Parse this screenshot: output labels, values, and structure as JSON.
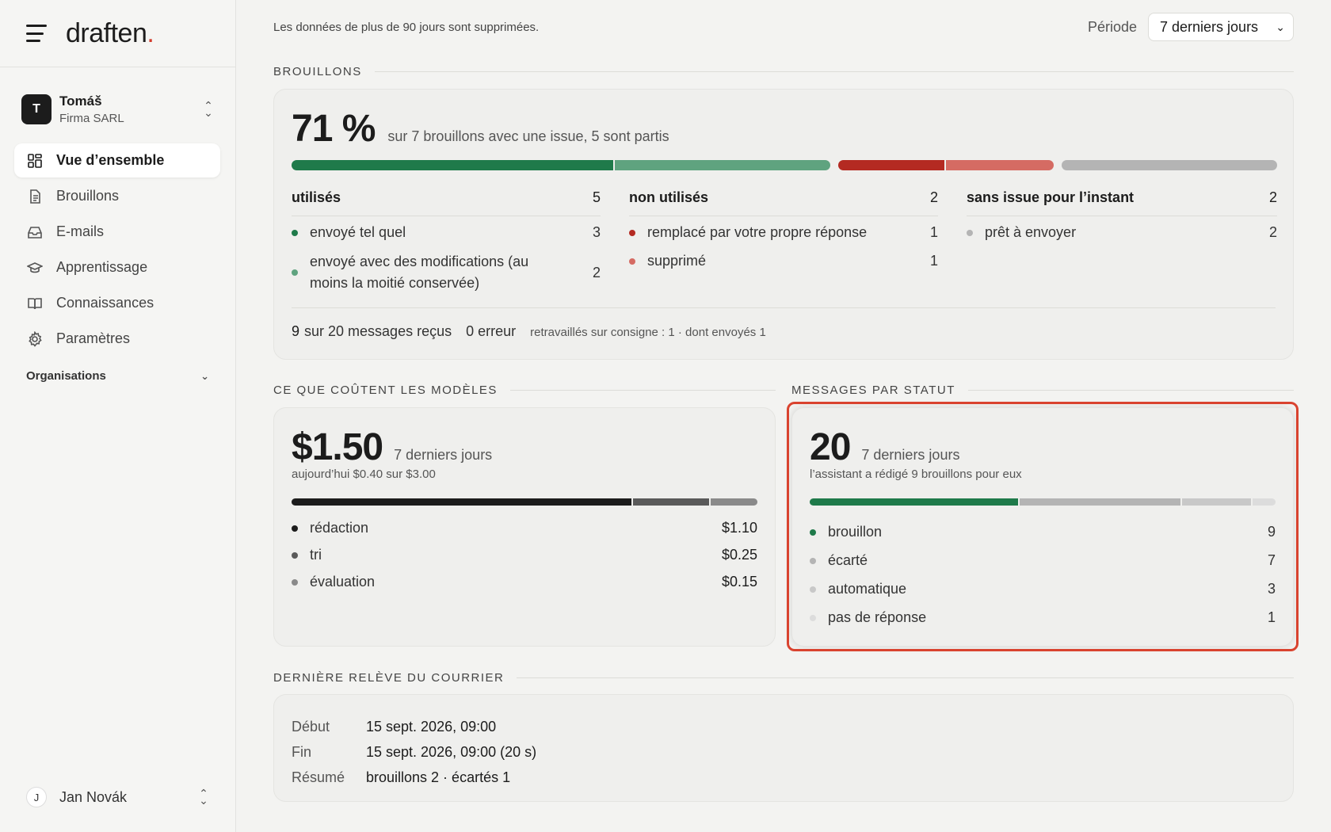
{
  "brand": {
    "name": "draften",
    "dot": "."
  },
  "account": {
    "initial": "T",
    "name": "Tomáš",
    "org": "Firma SARL"
  },
  "nav": [
    {
      "label": "Vue d’ensemble",
      "icon": "grid-icon",
      "active": true
    },
    {
      "label": "Brouillons",
      "icon": "document-icon"
    },
    {
      "label": "E-mails",
      "icon": "inbox-icon"
    },
    {
      "label": "Apprentissage",
      "icon": "graduation-cap-icon"
    },
    {
      "label": "Connaissances",
      "icon": "book-icon"
    },
    {
      "label": "Paramètres",
      "icon": "gear-icon"
    }
  ],
  "organizations_label": "Organisations",
  "user": {
    "initial": "J",
    "name": "Jan Novák"
  },
  "topbar": {
    "retention": "Les données de plus de 90 jours sont supprimées.",
    "period_label": "Période",
    "period_value": "7 derniers jours"
  },
  "drafts": {
    "section_title": "BROUILLONS",
    "percent": "71 %",
    "summary": "sur 7 brouillons avec une issue, 5 sont partis",
    "bar": [
      {
        "key": "sent_as_is",
        "value": 3,
        "color": "#1f7a4a"
      },
      {
        "key": "sent_modified",
        "value": 2,
        "color": "#5fa37f"
      },
      {
        "key": "replaced",
        "value": 1,
        "color": "#b42a22"
      },
      {
        "key": "deleted",
        "value": 1,
        "color": "#d56b63"
      },
      {
        "key": "ready",
        "value": 2,
        "color": "#b4b4b4"
      }
    ],
    "used": {
      "title": "utilisés",
      "count": "5",
      "rows": [
        {
          "label": "envoyé tel quel",
          "value": "3",
          "color": "#1f7a4a"
        },
        {
          "label": "envoyé avec des modifications (au moins la moitié conservée)",
          "value": "2",
          "color": "#5fa37f"
        }
      ]
    },
    "unused": {
      "title": "non utilisés",
      "count": "2",
      "rows": [
        {
          "label": "remplacé par votre propre réponse",
          "value": "1",
          "color": "#b42a22"
        },
        {
          "label": "supprimé",
          "value": "1",
          "color": "#d56b63"
        }
      ]
    },
    "pending": {
      "title": "sans issue pour l’instant",
      "count": "2",
      "rows": [
        {
          "label": "prêt à envoyer",
          "value": "2",
          "color": "#b4b4b4"
        }
      ]
    },
    "footer": {
      "received_count": "9",
      "received_text": "sur 20 messages reçus",
      "errors": "0 erreur",
      "reworked": "retravaillés sur consigne : 1 · dont envoyés 1"
    }
  },
  "costs": {
    "section_title": "CE QUE COÛTENT LES MODÈLES",
    "total": "$1.50",
    "period": "7 derniers jours",
    "today": "aujourd’hui $0.40 sur $3.00",
    "rows": [
      {
        "label": "rédaction",
        "value": "$1.10",
        "amount": 1.1,
        "color": "#1c1c1c"
      },
      {
        "label": "tri",
        "value": "$0.25",
        "amount": 0.25,
        "color": "#5a5a5a"
      },
      {
        "label": "évaluation",
        "value": "$0.15",
        "amount": 0.15,
        "color": "#8a8a8a"
      }
    ]
  },
  "status": {
    "section_title": "MESSAGES PAR STATUT",
    "total": "20",
    "period": "7 derniers jours",
    "subtitle": "l’assistant a rédigé 9 brouillons pour eux",
    "rows": [
      {
        "label": "brouillon",
        "value": "9",
        "count": 9,
        "color": "#1f7a4a"
      },
      {
        "label": "écarté",
        "value": "7",
        "count": 7,
        "color": "#b4b4b4"
      },
      {
        "label": "automatique",
        "value": "3",
        "count": 3,
        "color": "#c8c8c8"
      },
      {
        "label": "pas de réponse",
        "value": "1",
        "count": 1,
        "color": "#dcdcdc"
      }
    ]
  },
  "last_fetch": {
    "section_title": "DERNIÈRE RELÈVE DU COURRIER",
    "rows": [
      {
        "label": "Début",
        "value": "15 sept. 2026, 09:00"
      },
      {
        "label": "Fin",
        "value": "15 sept. 2026, 09:00 (20 s)"
      },
      {
        "label": "Résumé",
        "value": "brouillons 2 · écartés 1"
      }
    ]
  }
}
